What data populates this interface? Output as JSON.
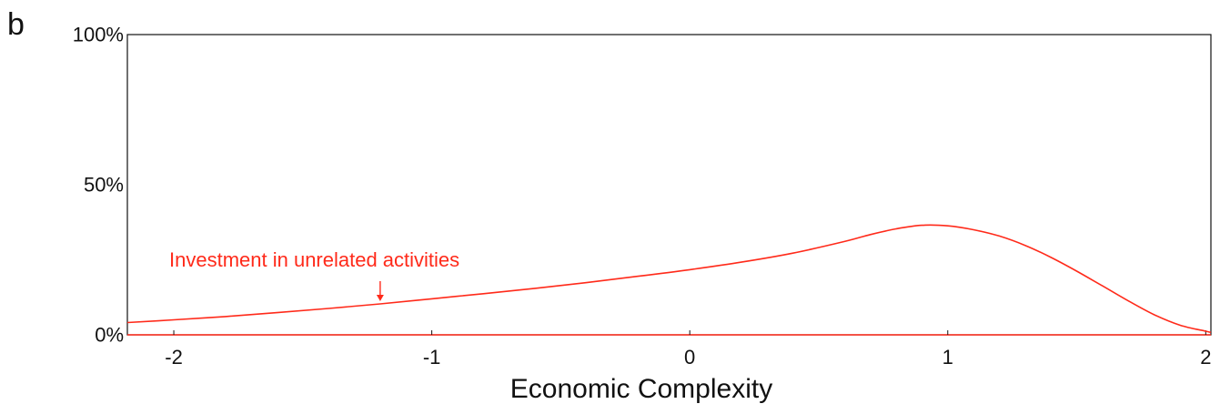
{
  "panel_label": "b",
  "chart_data": {
    "type": "line",
    "xlabel": "Economic Complexity",
    "ylabel": "",
    "xlim": [
      -2.18,
      2.02
    ],
    "ylim": [
      0,
      100
    ],
    "x_ticks": [
      -2,
      -1,
      0,
      1,
      2
    ],
    "x_tick_labels": [
      "-2",
      "-1",
      "0",
      "1",
      "2"
    ],
    "y_ticks": [
      0,
      50,
      100
    ],
    "y_tick_labels": [
      "0%",
      "50%",
      "100%"
    ],
    "grid": false,
    "series": [
      {
        "name": "Investment in unrelated activities",
        "color": "#ff2a1a",
        "x": [
          -2.18,
          -2.0,
          -1.8,
          -1.6,
          -1.4,
          -1.2,
          -1.0,
          -0.8,
          -0.6,
          -0.4,
          -0.2,
          0.0,
          0.2,
          0.4,
          0.6,
          0.7,
          0.8,
          0.9,
          1.0,
          1.1,
          1.2,
          1.3,
          1.4,
          1.5,
          1.6,
          1.7,
          1.8,
          1.9,
          2.0,
          2.02
        ],
        "values": [
          4.1,
          5.0,
          6.1,
          7.4,
          8.8,
          10.3,
          12.0,
          13.7,
          15.5,
          17.4,
          19.5,
          21.7,
          24.2,
          27.2,
          31.1,
          33.4,
          35.3,
          36.5,
          36.3,
          35.0,
          32.9,
          29.8,
          25.8,
          21.2,
          16.3,
          11.3,
          6.7,
          3.2,
          1.2,
          0.8
        ]
      }
    ],
    "annotations": [
      {
        "text": "Investment in unrelated activities",
        "color": "#ff2a1a",
        "arrow_to_x": -1.2
      }
    ]
  }
}
